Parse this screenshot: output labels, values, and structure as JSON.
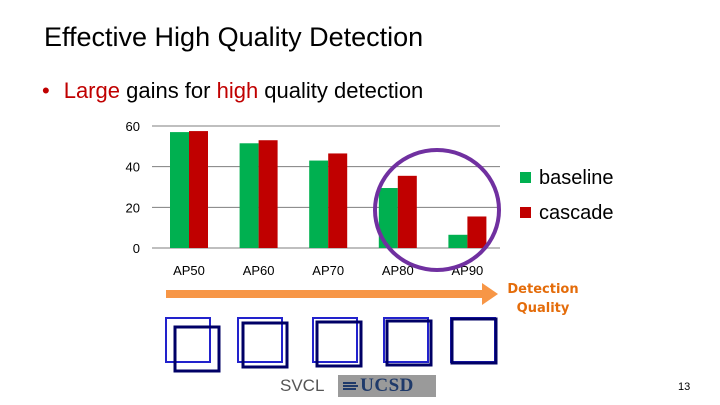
{
  "slide": {
    "title": "Effective High Quality Detection",
    "bullet_parts": [
      "Large",
      " gains for ",
      "high",
      " quality detection"
    ],
    "quality_label_line1": "Detection",
    "quality_label_line2": "Quality",
    "footer_left": "SVCL",
    "footer_logo": "UCSD",
    "page_number": "13",
    "colors": {
      "accent_red": "#c00000",
      "arrow_orange": "#f79646",
      "highlight_circle": "#7030a0",
      "box_blue": "#2222cc"
    }
  },
  "chart_data": {
    "type": "bar",
    "categories": [
      "AP50",
      "AP60",
      "AP70",
      "AP80",
      "AP90"
    ],
    "series": [
      {
        "name": "baseline",
        "color": "#00b050",
        "values": [
          57,
          51.5,
          43,
          29.5,
          6.5
        ]
      },
      {
        "name": "cascade",
        "color": "#c00000",
        "values": [
          57.5,
          53,
          46.5,
          35.5,
          15.5
        ]
      }
    ],
    "yticks": [
      0,
      20,
      40,
      60
    ],
    "ylim": [
      0,
      60
    ],
    "grid": true,
    "legend": "right"
  }
}
